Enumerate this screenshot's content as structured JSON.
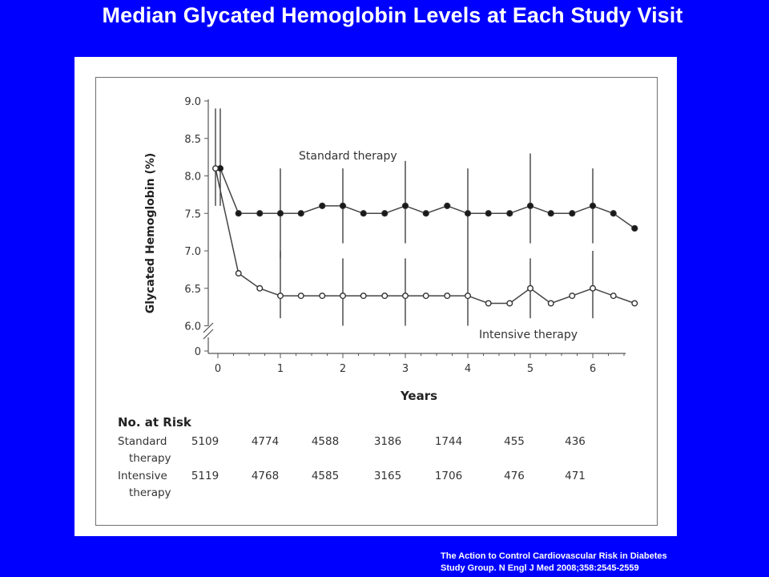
{
  "slide": {
    "title": "Median Glycated Hemoglobin Levels at Each Study Visit",
    "citation_line1": "The Action to Control Cardiovascular Risk in Diabetes",
    "citation_line2": "Study Group. N Engl J Med 2008;358:2545-2559"
  },
  "chart_data": {
    "type": "line",
    "xlabel": "Years",
    "ylabel": "Glycated Hemoglobin (%)",
    "xlim": [
      0,
      6.5
    ],
    "ylim": [
      6.0,
      9.0
    ],
    "y_axis_break": true,
    "x_ticks": [
      "0",
      "1",
      "2",
      "3",
      "4",
      "5",
      "6"
    ],
    "y_ticks": [
      "9.0",
      "8.5",
      "8.0",
      "7.5",
      "7.0",
      "6.5",
      "6.0",
      "0"
    ],
    "colors": {
      "standard": "#1a1a1a",
      "intensive": "#ffffff",
      "line": "#444444"
    },
    "series": [
      {
        "name": "Standard therapy",
        "marker": "filled-circle",
        "points": [
          [
            0.0,
            8.1
          ],
          [
            0.33,
            7.5
          ],
          [
            0.67,
            7.5
          ],
          [
            1.0,
            7.5
          ],
          [
            1.33,
            7.5
          ],
          [
            1.67,
            7.6
          ],
          [
            2.0,
            7.6
          ],
          [
            2.33,
            7.5
          ],
          [
            2.67,
            7.5
          ],
          [
            3.0,
            7.6
          ],
          [
            3.33,
            7.5
          ],
          [
            3.67,
            7.6
          ],
          [
            4.0,
            7.5
          ],
          [
            4.33,
            7.5
          ],
          [
            4.67,
            7.5
          ],
          [
            5.0,
            7.6
          ],
          [
            5.33,
            7.5
          ],
          [
            5.67,
            7.5
          ],
          [
            6.0,
            7.6
          ],
          [
            6.33,
            7.5
          ],
          [
            6.67,
            7.3
          ]
        ],
        "error_bars": [
          [
            0.0,
            7.6,
            8.9
          ],
          [
            1.0,
            6.9,
            8.1
          ],
          [
            2.0,
            7.1,
            8.1
          ],
          [
            3.0,
            7.1,
            8.2
          ],
          [
            4.0,
            7.0,
            8.1
          ],
          [
            5.0,
            7.1,
            8.3
          ],
          [
            6.0,
            7.1,
            8.1
          ]
        ]
      },
      {
        "name": "Intensive therapy",
        "marker": "open-circle",
        "points": [
          [
            0.0,
            8.1
          ],
          [
            0.33,
            6.7
          ],
          [
            0.67,
            6.5
          ],
          [
            1.0,
            6.4
          ],
          [
            1.33,
            6.4
          ],
          [
            1.67,
            6.4
          ],
          [
            2.0,
            6.4
          ],
          [
            2.33,
            6.4
          ],
          [
            2.67,
            6.4
          ],
          [
            3.0,
            6.4
          ],
          [
            3.33,
            6.4
          ],
          [
            3.67,
            6.4
          ],
          [
            4.0,
            6.4
          ],
          [
            4.33,
            6.3
          ],
          [
            4.67,
            6.3
          ],
          [
            5.0,
            6.5
          ],
          [
            5.33,
            6.3
          ],
          [
            5.67,
            6.4
          ],
          [
            6.0,
            6.5
          ],
          [
            6.33,
            6.4
          ],
          [
            6.67,
            6.3
          ]
        ],
        "error_bars": [
          [
            0.0,
            7.6,
            8.9
          ],
          [
            1.0,
            6.1,
            7.0
          ],
          [
            2.0,
            6.0,
            6.9
          ],
          [
            3.0,
            6.0,
            6.9
          ],
          [
            4.0,
            6.0,
            7.0
          ],
          [
            5.0,
            6.1,
            6.9
          ],
          [
            6.0,
            6.1,
            7.0
          ]
        ]
      }
    ],
    "risk_table": {
      "title": "No. at Risk",
      "rows": [
        {
          "label_line1": "Standard",
          "label_line2": "therapy",
          "values": [
            "5109",
            "4774",
            "4588",
            "3186",
            "1744",
            "455",
            "436"
          ]
        },
        {
          "label_line1": "Intensive",
          "label_line2": "therapy",
          "values": [
            "5119",
            "4768",
            "4585",
            "3165",
            "1706",
            "476",
            "471"
          ]
        }
      ]
    }
  }
}
